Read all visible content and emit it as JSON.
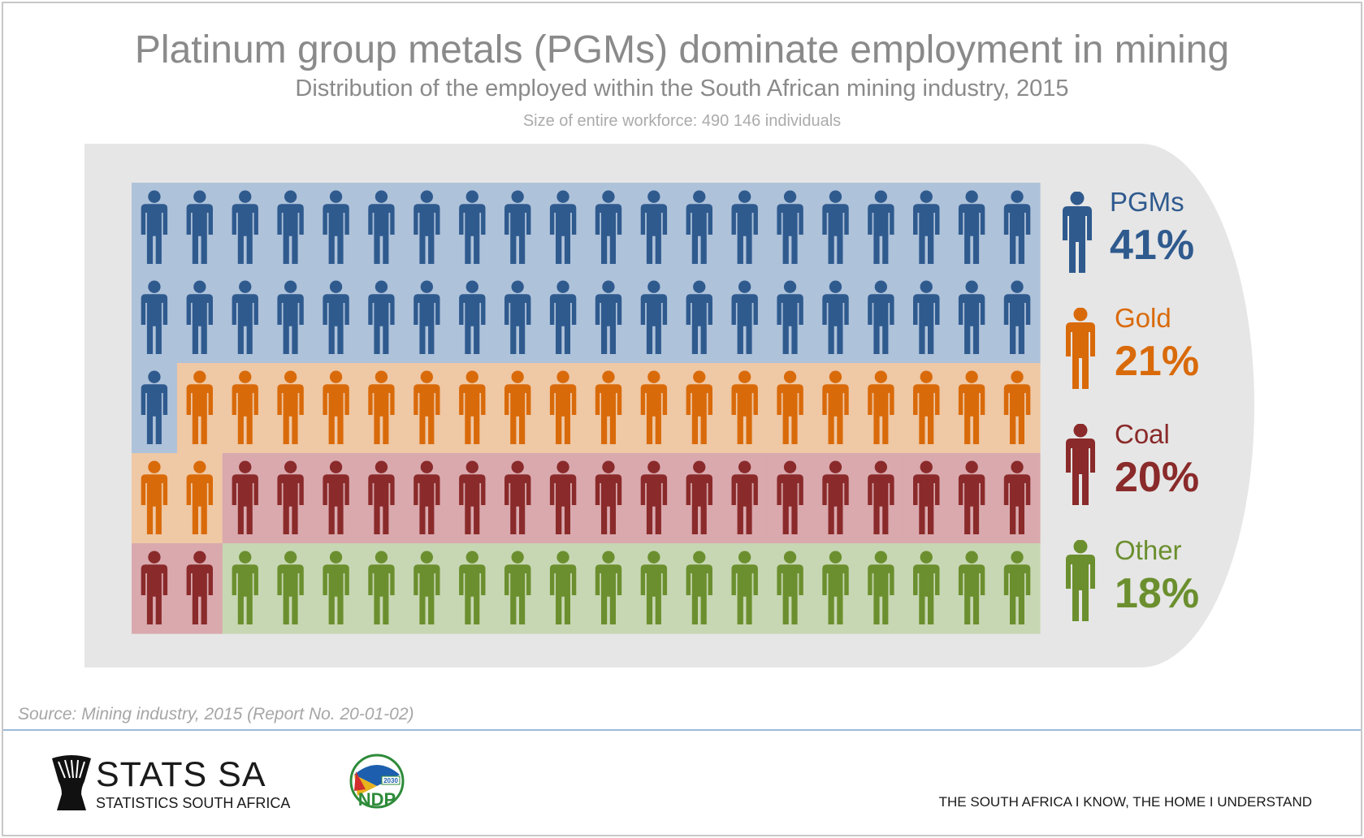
{
  "title": "Platinum group metals (PGMs) dominate employment in mining",
  "subtitle": "Distribution of the employed within the South African mining industry, 2015",
  "note": "Size of entire workforce: 490 146 individuals",
  "source": "Source: Mining industry, 2015 (Report No. 20-01-02)",
  "footer": {
    "org_name": "STATS SA",
    "org_subtitle": "STATISTICS SOUTH AFRICA",
    "ndp_year": "2030",
    "ndp_text": "NDP",
    "tagline": "THE SOUTH AFRICA I KNOW, THE HOME I UNDERSTAND"
  },
  "chart_data": {
    "type": "pictogram",
    "total_icons": 100,
    "columns": 20,
    "rows": 5,
    "categories": [
      "PGMs",
      "Gold",
      "Coal",
      "Other"
    ],
    "values": [
      41,
      21,
      20,
      18
    ],
    "value_labels": [
      "41%",
      "21%",
      "20%",
      "18%"
    ],
    "colors": [
      "#2f5a8e",
      "#d96a0a",
      "#8a2a2a",
      "#6b8f2e"
    ],
    "background_colors": [
      "#aec2da",
      "#efc8a5",
      "#d9a9ae",
      "#c7d7b3"
    ]
  }
}
